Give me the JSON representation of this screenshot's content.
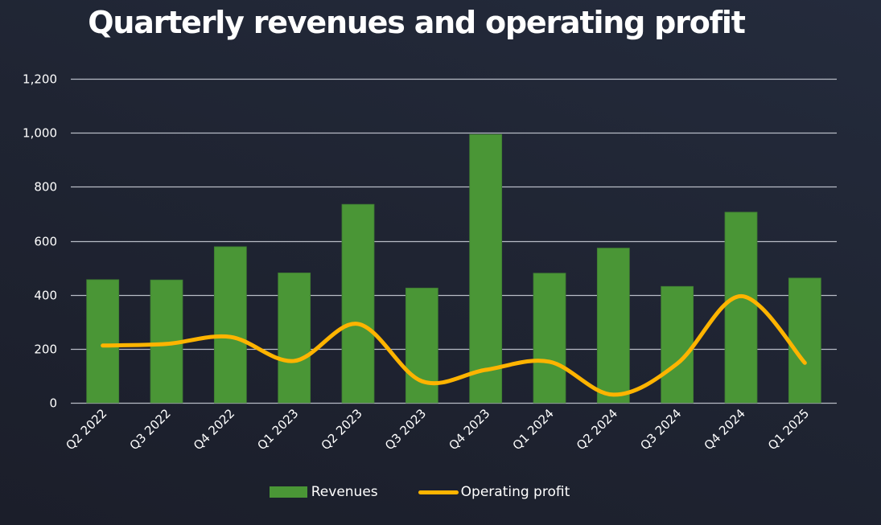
{
  "chart_data": {
    "type": "bar",
    "title": "Quarterly revenues and operating profit",
    "xlabel": "",
    "ylabel": "",
    "ylim": [
      0,
      1200
    ],
    "yticks": [
      0,
      200,
      400,
      600,
      800,
      1000,
      1200
    ],
    "ytick_labels": [
      "0",
      "200",
      "400",
      "600",
      "800",
      "1,000",
      "1,200"
    ],
    "grid": true,
    "legend_position": "bottom",
    "categories": [
      "Q2 2022",
      "Q3 2022",
      "Q4 2022",
      "Q1 2023",
      "Q2 2023",
      "Q3 2023",
      "Q4 2023",
      "Q1 2024",
      "Q2 2024",
      "Q3 2024",
      "Q4 2024",
      "Q1 2025"
    ],
    "series": [
      {
        "name": "Revenues",
        "type": "bar",
        "color": "#4a9636",
        "values": [
          456,
          455,
          578,
          481,
          735,
          425,
          994,
          480,
          573,
          431,
          706,
          462
        ]
      },
      {
        "name": "Operating profit",
        "type": "line",
        "smooth": true,
        "color": "#ffb400",
        "values": [
          212,
          218,
          244,
          155,
          292,
          80,
          122,
          152,
          30,
          145,
          395,
          148
        ]
      }
    ]
  },
  "colors": {
    "gridline": "#b8bcc6",
    "text": "#ffffff"
  }
}
